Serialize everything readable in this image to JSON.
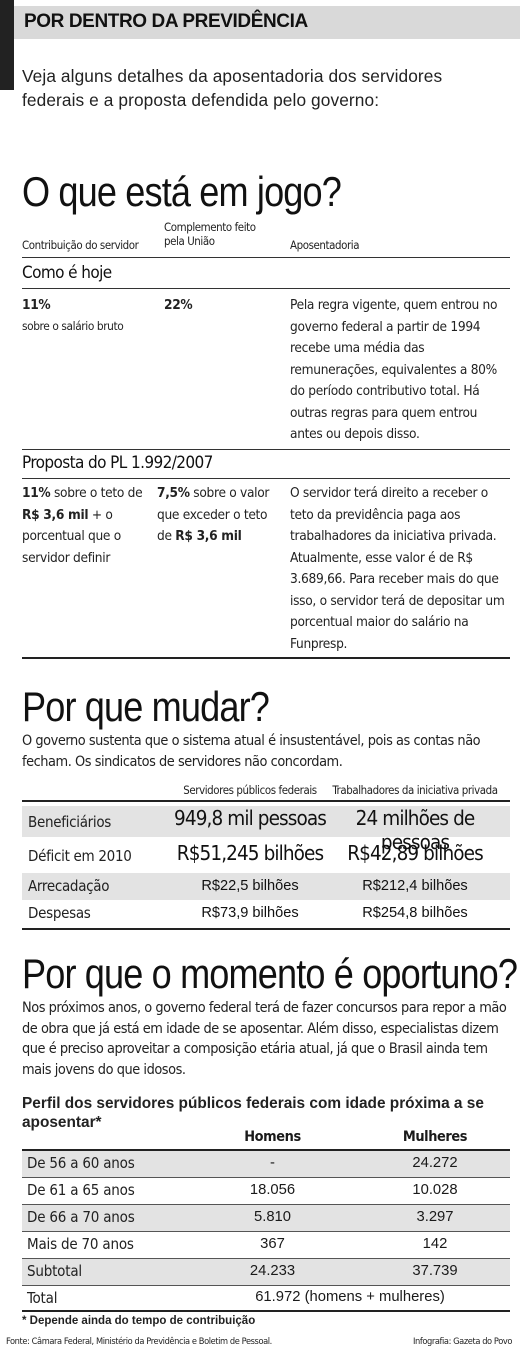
{
  "header": {
    "title": "POR DENTRO DA PREVIDÊNCIA",
    "intro": "Veja alguns detalhes da aposentadoria dos servidores federais e a proposta defendida pelo governo:"
  },
  "section1": {
    "title": "O que está em jogo?",
    "columns": [
      "Contribuição do servidor",
      "Complemento feito pela União",
      "Aposentadoria"
    ],
    "how_today": {
      "label": "Como é hoje",
      "contribution_value": "11%",
      "contribution_note": "sobre o salário bruto",
      "complement_value": "22%",
      "retirement": "Pela regra vigente, quem entrou no governo federal a partir de 1994 recebe uma média das remunerações, equivalentes a 80% do período contributivo total. Há outras regras para quem entrou antes ou depois disso."
    },
    "proposal": {
      "label": "Proposta do PL 1.992/2007",
      "contribution": [
        "11%",
        " sobre o teto de ",
        "R$ 3,6 mil",
        " + o porcentual que o servidor definir"
      ],
      "complement": [
        "7,5%",
        " sobre o valor que exceder o teto de ",
        "R$ 3,6 mil"
      ],
      "retirement": "O servidor terá direito a receber o teto da previdência paga aos trabalhadores da iniciativa privada. Atualmente, esse valor é de R$ 3.689,66. Para receber mais do que isso, o servidor terá de depositar um porcentual maior do salário na Funpresp."
    }
  },
  "section2": {
    "title": "Por que mudar?",
    "text": "O governo sustenta que o sistema atual é insustentável, pois as contas não fecham. Os sindicatos de servidores não concordam.",
    "columns": [
      "Servidores públicos federais",
      "Trabalhadores da iniciativa privada"
    ],
    "rows": [
      {
        "label": "Beneficiários",
        "a": "949,8 mil pessoas",
        "b": "24 milhões de pessoas"
      },
      {
        "label": "Déficit em 2010",
        "a": "R$51,245 bilhões",
        "b": "R$42,89 bilhões"
      },
      {
        "label": "Arrecadação",
        "a": "R$22,5 bilhões",
        "b": "R$212,4 bilhões"
      },
      {
        "label": "Despesas",
        "a": "R$73,9 bilhões",
        "b": "R$254,8 bilhões"
      }
    ]
  },
  "section3": {
    "title": "Por que o momento é oportuno?",
    "text": "Nos próximos anos, o governo federal terá de fazer concursos para repor a mão de obra que já está em idade de se aposentar. Além disso, especialistas dizem que é preciso aproveitar a composição etária atual, já que o Brasil ainda tem mais jovens do que idosos.",
    "table_title": "Perfil dos servidores públicos federais com idade próxima a se aposentar*",
    "columns": [
      "Homens",
      "Mulheres"
    ],
    "rows": [
      {
        "label": "De 56 a 60 anos",
        "a": "-",
        "b": "24.272"
      },
      {
        "label": "De 61 a 65 anos",
        "a": "18.056",
        "b": "10.028"
      },
      {
        "label": "De 66 a 70 anos",
        "a": "5.810",
        "b": "3.297"
      },
      {
        "label": "Mais de 70 anos",
        "a": "367",
        "b": "142"
      },
      {
        "label": "Subtotal",
        "a": "24.233",
        "b": "37.739"
      }
    ],
    "total_label": "Total",
    "total_value": "61.972 (homens + mulheres)",
    "footnote": "* Depende ainda do tempo de contribuição"
  },
  "footer": {
    "source": "Fonte: Câmara Federal, Ministério da Previdência e Boletim de Pessoal.",
    "credit": "Infografia: Gazeta do Povo"
  }
}
